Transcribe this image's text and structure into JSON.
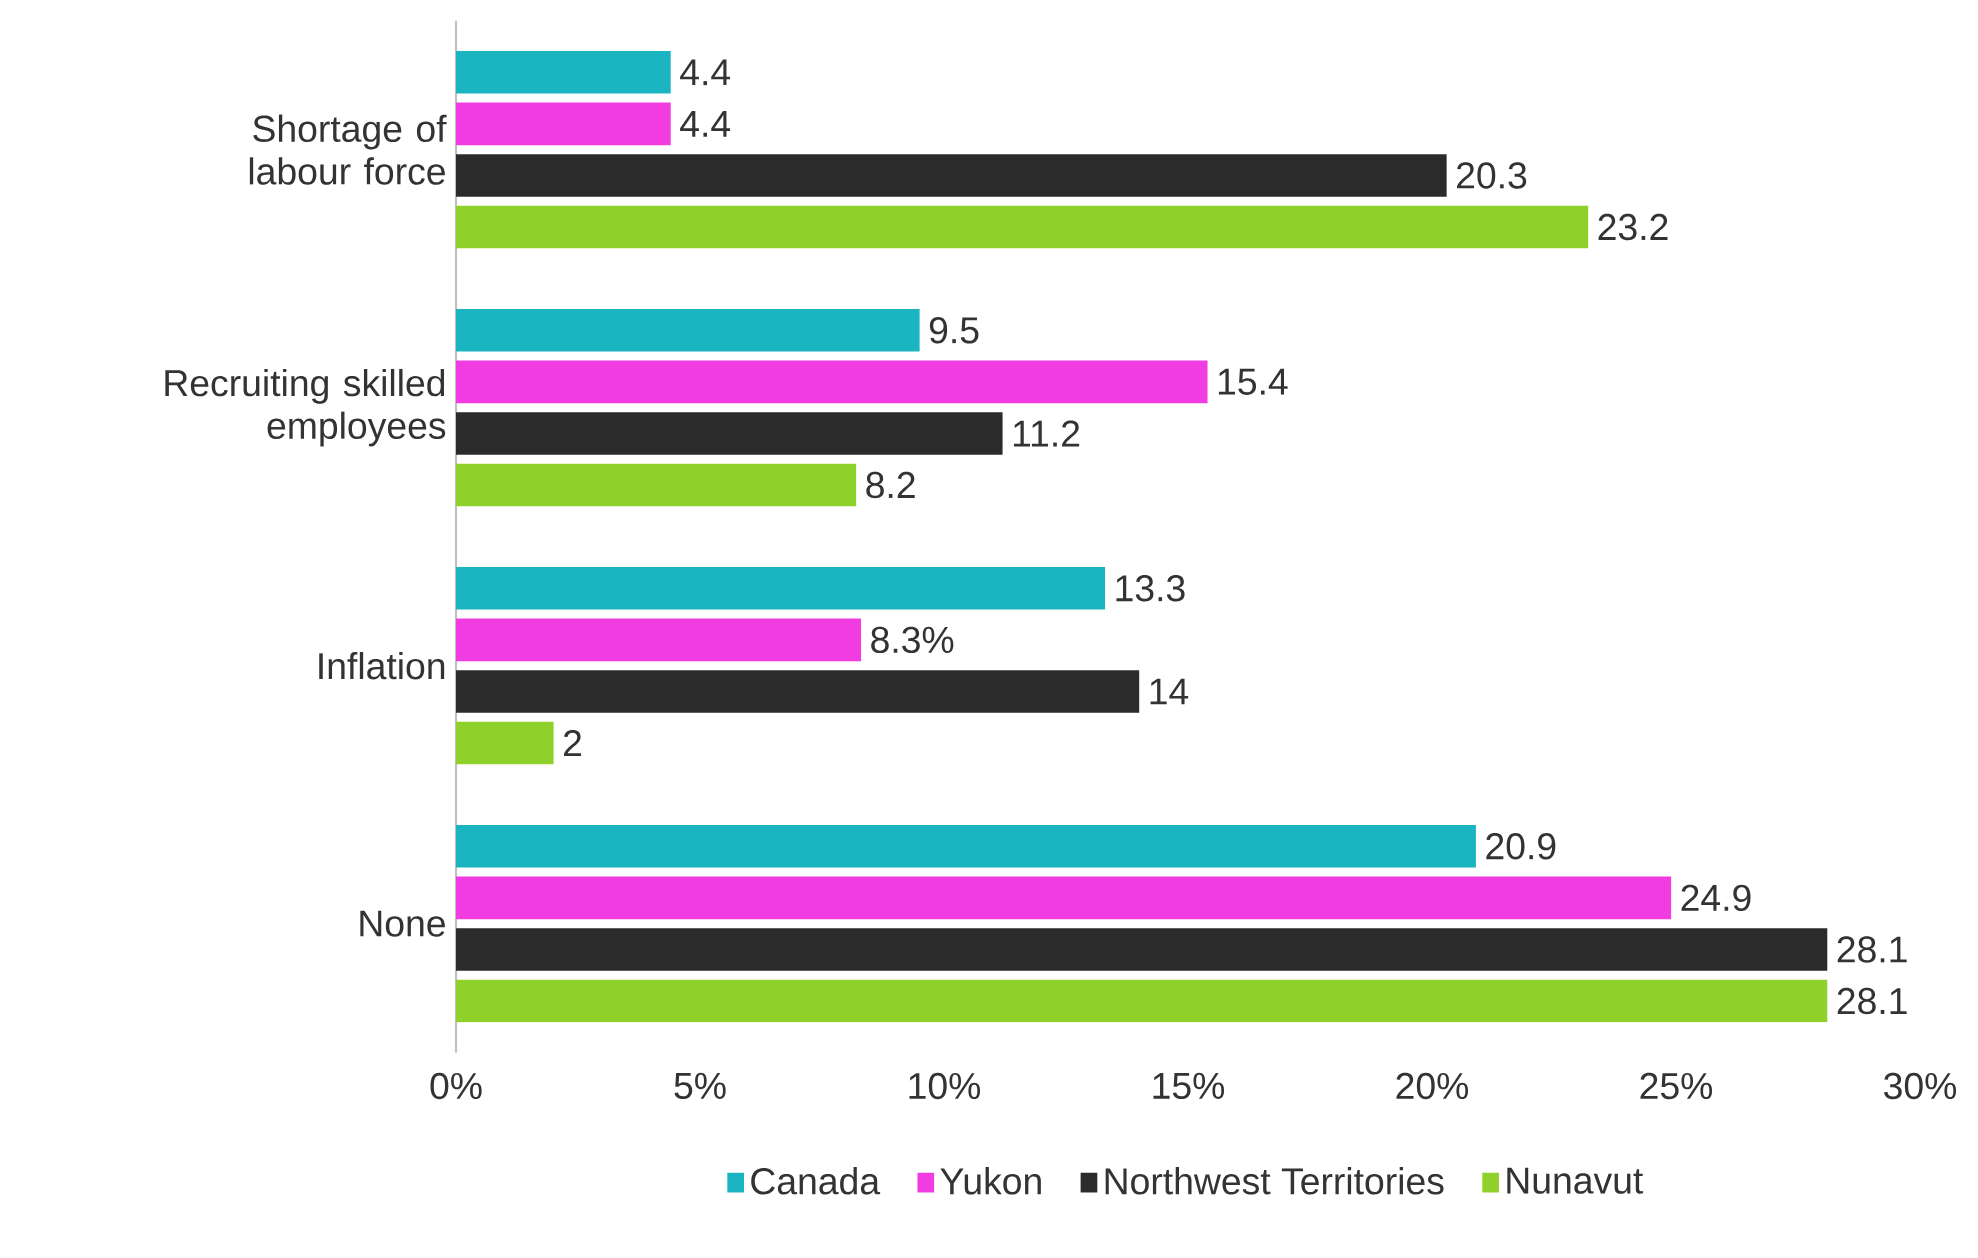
{
  "chart_data": {
    "type": "bar",
    "orientation": "horizontal",
    "categories": [
      "Shortage of labour force",
      "Recruiting skilled employees",
      "Inflation",
      "None"
    ],
    "series": [
      {
        "name": "Canada",
        "color": "#1ab5c1",
        "values": [
          4.4,
          9.5,
          13.3,
          20.9
        ],
        "value_labels": [
          "4.4",
          "9.5",
          "13.3",
          "20.9"
        ]
      },
      {
        "name": "Yukon",
        "color": "#f03ce0",
        "values": [
          4.4,
          15.4,
          8.3,
          24.9
        ],
        "value_labels": [
          "4.4",
          "15.4",
          "8.3%",
          "24.9"
        ]
      },
      {
        "name": "Northwest Territories",
        "color": "#2b2b2b",
        "values": [
          20.3,
          11.2,
          14,
          28.1
        ],
        "value_labels": [
          "20.3",
          "11.2",
          "14",
          "28.1"
        ]
      },
      {
        "name": "Nunavut",
        "color": "#8fd12a",
        "values": [
          23.2,
          8.2,
          2,
          28.1
        ],
        "value_labels": [
          "23.2",
          "8.2",
          "2",
          "28.1"
        ]
      }
    ],
    "xlim": [
      0,
      30
    ],
    "xticks": [
      {
        "value": 0,
        "label": "0%"
      },
      {
        "value": 5,
        "label": "5%"
      },
      {
        "value": 10,
        "label": "10%"
      },
      {
        "value": 15,
        "label": "15%"
      },
      {
        "value": 20,
        "label": "20%"
      },
      {
        "value": 25,
        "label": "25%"
      },
      {
        "value": 30,
        "label": "30%"
      }
    ],
    "grid": false,
    "legend": "bottom"
  }
}
